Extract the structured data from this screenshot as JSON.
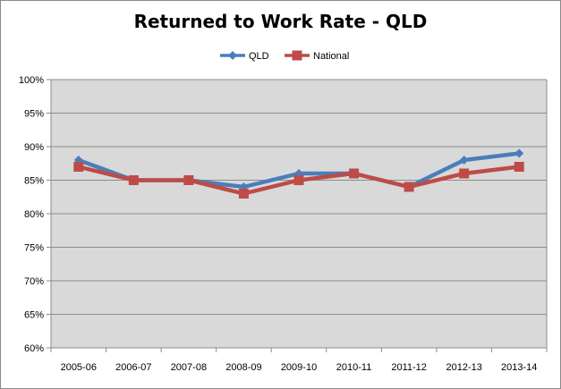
{
  "chart_data": {
    "type": "line",
    "title": "Returned to Work Rate - QLD",
    "xlabel": "",
    "ylabel": "",
    "categories": [
      "2005-06",
      "2006-07",
      "2007-08",
      "2008-09",
      "2009-10",
      "2010-11",
      "2011-12",
      "2012-13",
      "2013-14"
    ],
    "ylim": [
      60,
      100
    ],
    "y_ticks": [
      "60%",
      "65%",
      "70%",
      "75%",
      "80%",
      "85%",
      "90%",
      "95%",
      "100%"
    ],
    "y_tick_values": [
      60,
      65,
      70,
      75,
      80,
      85,
      90,
      95,
      100
    ],
    "grid": true,
    "legend_position": "top",
    "series": [
      {
        "name": "QLD",
        "color": "#4a7ebb",
        "marker": "diamond",
        "values": [
          88,
          85,
          85,
          84,
          86,
          86,
          84,
          88,
          89
        ]
      },
      {
        "name": "National",
        "color": "#be4b48",
        "marker": "square",
        "values": [
          87,
          85,
          85,
          83,
          85,
          86,
          84,
          86,
          87
        ]
      }
    ],
    "plot_background": "#d9d9d9"
  }
}
